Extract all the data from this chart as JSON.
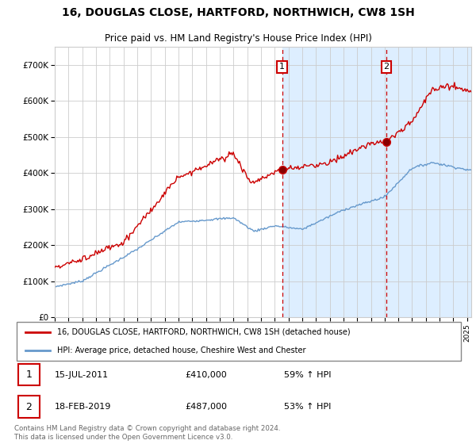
{
  "title": "16, DOUGLAS CLOSE, HARTFORD, NORTHWICH, CW8 1SH",
  "subtitle": "Price paid vs. HM Land Registry's House Price Index (HPI)",
  "legend_line1": "16, DOUGLAS CLOSE, HARTFORD, NORTHWICH, CW8 1SH (detached house)",
  "legend_line2": "HPI: Average price, detached house, Cheshire West and Chester",
  "footnote": "Contains HM Land Registry data © Crown copyright and database right 2024.\nThis data is licensed under the Open Government Licence v3.0.",
  "sale1_label": "1",
  "sale1_date": "15-JUL-2011",
  "sale1_price": "£410,000",
  "sale1_hpi": "59% ↑ HPI",
  "sale2_label": "2",
  "sale2_date": "18-FEB-2019",
  "sale2_price": "£487,000",
  "sale2_hpi": "53% ↑ HPI",
  "red_color": "#cc0000",
  "blue_color": "#6699cc",
  "shaded_color": "#ddeeff",
  "grid_color": "#cccccc",
  "ylim": [
    0,
    750000
  ],
  "yticks": [
    0,
    100000,
    200000,
    300000,
    400000,
    500000,
    600000,
    700000
  ],
  "sale1_x": 2011.54,
  "sale1_y": 410000,
  "sale2_x": 2019.12,
  "sale2_y": 487000,
  "xmin": 1995,
  "xmax": 2025.3
}
